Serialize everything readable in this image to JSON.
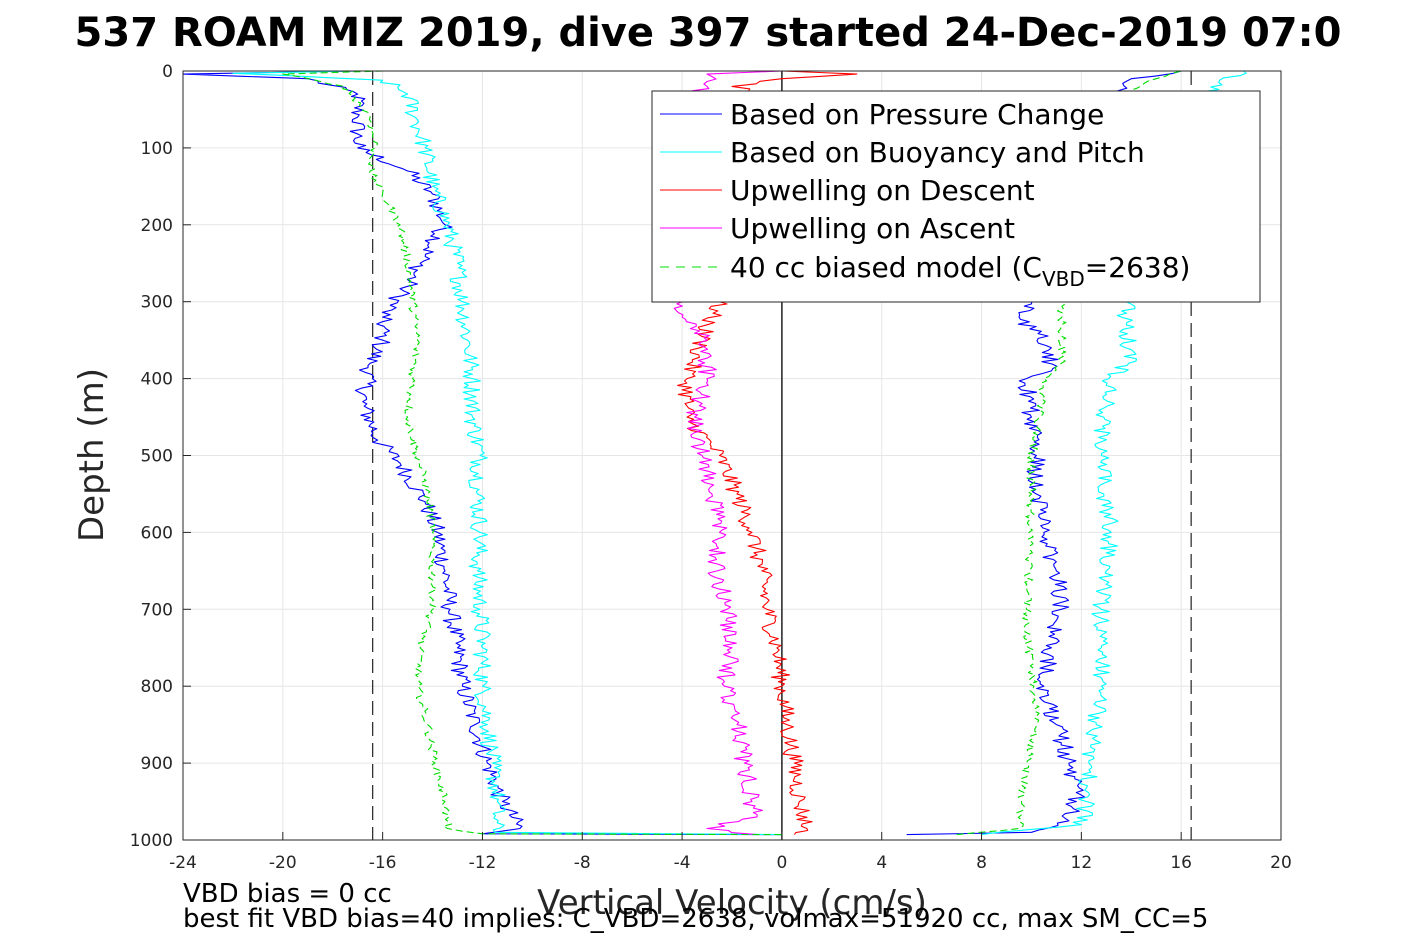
{
  "chart_data": {
    "type": "line",
    "title": "537 ROAM MIZ 2019, dive 397 started 24-Dec-2019 07:0",
    "xlabel": "Vertical Velocity (cm/s)",
    "ylabel": "Depth (m)",
    "xlim": [
      -24,
      20
    ],
    "ylim": [
      0,
      1000
    ],
    "y_reversed": true,
    "grid": true,
    "xticks": [
      "-24",
      "-20",
      "-16",
      "-12",
      "-8",
      "-4",
      "0",
      "4",
      "8",
      "12",
      "16",
      "20"
    ],
    "yticks": [
      "0",
      "100",
      "200",
      "300",
      "400",
      "500",
      "600",
      "700",
      "800",
      "900",
      "1000"
    ],
    "legend_position": "top-right",
    "legend": [
      {
        "label": "Based on Pressure Change",
        "color": "#0000ff",
        "style": "solid"
      },
      {
        "label": "Based on Buoyancy and Pitch",
        "color": "#00ffff",
        "style": "solid"
      },
      {
        "label": "Upwelling on Descent",
        "color": "#ff0000",
        "style": "solid"
      },
      {
        "label": "Upwelling on Ascent",
        "color": "#ff00ff",
        "style": "solid"
      },
      {
        "label_pre": "40 cc biased model (C",
        "label_sub": "VBD",
        "label_post": "=2638)",
        "color": "#00dd00",
        "style": "dashed"
      }
    ],
    "series": [
      {
        "name": "Based on Pressure Change",
        "color": "#0000ff",
        "branch": "descent",
        "points": [
          [
            -17,
            0
          ],
          [
            -24,
            4
          ],
          [
            -19,
            10
          ],
          [
            -17,
            30
          ],
          [
            -17,
            60
          ],
          [
            -17,
            100
          ],
          [
            -15,
            130
          ],
          [
            -14,
            160
          ],
          [
            -13.5,
            200
          ],
          [
            -14.5,
            250
          ],
          [
            -15,
            280
          ],
          [
            -16,
            320
          ],
          [
            -16,
            350
          ],
          [
            -16.5,
            380
          ],
          [
            -16.8,
            430
          ],
          [
            -16.2,
            480
          ],
          [
            -15.3,
            510
          ],
          [
            -14.3,
            560
          ],
          [
            -13.8,
            600
          ],
          [
            -13.5,
            650
          ],
          [
            -13.3,
            700
          ],
          [
            -13,
            750
          ],
          [
            -12.8,
            800
          ],
          [
            -12.3,
            850
          ],
          [
            -11.8,
            900
          ],
          [
            -11.2,
            950
          ],
          [
            -10.5,
            985
          ],
          [
            -12,
            992
          ],
          [
            0,
            993
          ]
        ]
      },
      {
        "name": "Based on Pressure Change",
        "color": "#0000ff",
        "branch": "ascent",
        "points": [
          [
            5,
            993
          ],
          [
            10,
            990
          ],
          [
            11.5,
            975
          ],
          [
            11.8,
            950
          ],
          [
            11.5,
            900
          ],
          [
            11,
            850
          ],
          [
            10.5,
            800
          ],
          [
            10.8,
            750
          ],
          [
            11.2,
            700
          ],
          [
            11,
            650
          ],
          [
            10.5,
            600
          ],
          [
            10.2,
            550
          ],
          [
            10.2,
            500
          ],
          [
            10,
            450
          ],
          [
            9.8,
            400
          ],
          [
            10.8,
            390
          ],
          [
            10.8,
            360
          ],
          [
            9.5,
            320
          ],
          [
            10,
            300
          ],
          [
            12.3,
            50
          ],
          [
            14,
            10
          ],
          [
            16,
            0
          ]
        ]
      },
      {
        "name": "Based on Buoyancy and Pitch",
        "color": "#00ffff",
        "branch": "descent",
        "points": [
          [
            -17,
            0
          ],
          [
            -22,
            3
          ],
          [
            -16,
            12
          ],
          [
            -15,
            30
          ],
          [
            -14.7,
            60
          ],
          [
            -14.3,
            100
          ],
          [
            -14,
            150
          ],
          [
            -13.4,
            200
          ],
          [
            -13,
            250
          ],
          [
            -12.8,
            300
          ],
          [
            -12.6,
            350
          ],
          [
            -12.4,
            400
          ],
          [
            -12.4,
            450
          ],
          [
            -12.1,
            500
          ],
          [
            -12.2,
            550
          ],
          [
            -12.1,
            600
          ],
          [
            -12.2,
            650
          ],
          [
            -12.1,
            700
          ],
          [
            -12,
            750
          ],
          [
            -12,
            800
          ],
          [
            -11.8,
            850
          ],
          [
            -11.6,
            900
          ],
          [
            -11.4,
            950
          ],
          [
            -11.5,
            990
          ],
          [
            0,
            993
          ]
        ]
      },
      {
        "name": "Based on Buoyancy and Pitch",
        "color": "#00ffff",
        "branch": "ascent",
        "points": [
          [
            8,
            993
          ],
          [
            12,
            980
          ],
          [
            12.2,
            950
          ],
          [
            12.3,
            900
          ],
          [
            12.6,
            850
          ],
          [
            12.8,
            800
          ],
          [
            12.8,
            750
          ],
          [
            12.8,
            700
          ],
          [
            13,
            650
          ],
          [
            13.2,
            600
          ],
          [
            12.9,
            550
          ],
          [
            12.8,
            500
          ],
          [
            12.9,
            450
          ],
          [
            13.1,
            400
          ],
          [
            13.9,
            380
          ],
          [
            13.8,
            330
          ],
          [
            13.8,
            300
          ],
          [
            17,
            100
          ],
          [
            17,
            30
          ],
          [
            18.5,
            0
          ]
        ]
      },
      {
        "name": "Upwelling on Descent",
        "color": "#ff0000",
        "branch": "descent",
        "points": [
          [
            0,
            0
          ],
          [
            3,
            4
          ],
          [
            0,
            10
          ],
          [
            -2,
            20
          ],
          [
            -0.5,
            30
          ],
          [
            -1,
            60
          ],
          [
            -2.5,
            300
          ],
          [
            -3,
            330
          ],
          [
            -3.3,
            360
          ],
          [
            -3.8,
            400
          ],
          [
            -3.8,
            450
          ],
          [
            -2.5,
            500
          ],
          [
            -1.8,
            550
          ],
          [
            -1.2,
            600
          ],
          [
            -0.8,
            650
          ],
          [
            -0.6,
            700
          ],
          [
            -0.2,
            750
          ],
          [
            0,
            800
          ],
          [
            0.2,
            850
          ],
          [
            0.5,
            900
          ],
          [
            0.7,
            950
          ],
          [
            1,
            985
          ],
          [
            0.5,
            993
          ]
        ]
      },
      {
        "name": "Upwelling on Ascent",
        "color": "#ff00ff",
        "branch": "ascent",
        "points": [
          [
            -1,
            993
          ],
          [
            -3,
            985
          ],
          [
            -1,
            970
          ],
          [
            -1.2,
            950
          ],
          [
            -1.5,
            900
          ],
          [
            -1.8,
            850
          ],
          [
            -2.3,
            800
          ],
          [
            -2,
            750
          ],
          [
            -2.2,
            700
          ],
          [
            -2.6,
            650
          ],
          [
            -2.5,
            600
          ],
          [
            -2.8,
            550
          ],
          [
            -3.2,
            500
          ],
          [
            -3.5,
            450
          ],
          [
            -3,
            400
          ],
          [
            -3,
            350
          ],
          [
            -4,
            320
          ],
          [
            -4,
            300
          ],
          [
            -5,
            70
          ],
          [
            -4,
            40
          ],
          [
            -3,
            20
          ],
          [
            -3,
            4
          ],
          [
            0,
            0
          ]
        ]
      },
      {
        "name": "40 cc biased model (C_VBD=2638)",
        "color": "#00dd00",
        "branch": "descent",
        "dashed": true,
        "points": [
          [
            -16,
            0
          ],
          [
            -20,
            4
          ],
          [
            -17.5,
            20
          ],
          [
            -16.5,
            60
          ],
          [
            -16.3,
            100
          ],
          [
            -16.5,
            130
          ],
          [
            -16,
            160
          ],
          [
            -15.3,
            200
          ],
          [
            -15,
            250
          ],
          [
            -14.8,
            300
          ],
          [
            -14.6,
            350
          ],
          [
            -14.8,
            400
          ],
          [
            -15,
            450
          ],
          [
            -14.6,
            500
          ],
          [
            -14.2,
            550
          ],
          [
            -14,
            600
          ],
          [
            -14,
            650
          ],
          [
            -14,
            700
          ],
          [
            -14.5,
            750
          ],
          [
            -14.6,
            800
          ],
          [
            -14.2,
            850
          ],
          [
            -13.9,
            900
          ],
          [
            -13.5,
            950
          ],
          [
            -13.4,
            985
          ],
          [
            -12,
            992
          ],
          [
            0,
            993
          ]
        ]
      },
      {
        "name": "40 cc biased model (C_VBD=2638)",
        "color": "#00dd00",
        "branch": "ascent",
        "dashed": true,
        "points": [
          [
            7,
            993
          ],
          [
            9.5,
            985
          ],
          [
            9.6,
            950
          ],
          [
            9.8,
            900
          ],
          [
            10.2,
            850
          ],
          [
            10.1,
            800
          ],
          [
            9.9,
            750
          ],
          [
            9.8,
            700
          ],
          [
            9.9,
            650
          ],
          [
            9.9,
            600
          ],
          [
            10,
            550
          ],
          [
            10,
            500
          ],
          [
            10.3,
            450
          ],
          [
            10.5,
            400
          ],
          [
            11.2,
            380
          ],
          [
            11.2,
            330
          ],
          [
            11.2,
            300
          ],
          [
            12.7,
            50
          ],
          [
            15,
            10
          ],
          [
            16,
            0
          ]
        ]
      }
    ],
    "reference_lines": [
      {
        "x": -16.4,
        "style": "dashed",
        "color": "#333333"
      },
      {
        "x": 16.4,
        "style": "dashed",
        "color": "#333333"
      },
      {
        "x": 0,
        "style": "solid",
        "color": "#000000"
      }
    ],
    "annotations": [
      "VBD bias = 0 cc",
      "best fit VBD bias=40 implies: C_VBD=2638, volmax=51920 cc, max SM_CC=5"
    ]
  }
}
